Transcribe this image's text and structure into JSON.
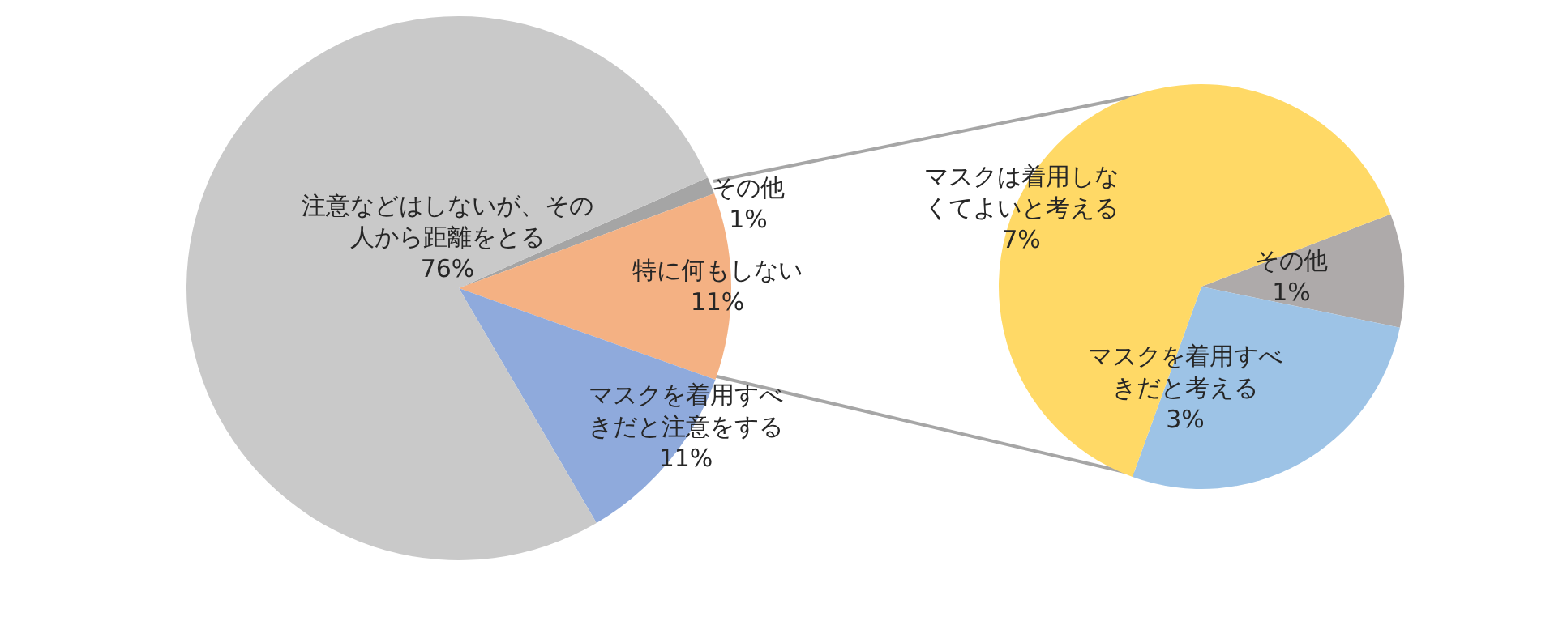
{
  "chart_data": [
    {
      "type": "pie",
      "categories": [
        "その他",
        "特に何もしない",
        "マスクを着用すべきだと注意をする",
        "注意などはしないが、その人から距離をとる"
      ],
      "values": [
        1,
        11,
        11,
        76
      ],
      "value_labels": [
        "1%",
        "11%",
        "11%",
        "76%"
      ],
      "colors": [
        "#a5a5a5",
        "#f4b183",
        "#8faadc",
        "#c9c9c9"
      ]
    },
    {
      "type": "pie",
      "categories": [
        "その他",
        "マスクを着用すべきだと考える",
        "マスクは着用しなくてよいと考える"
      ],
      "values": [
        1,
        3,
        7
      ],
      "value_labels": [
        "1%",
        "3%",
        "7%"
      ],
      "colors": [
        "#aeaaaa",
        "#9dc3e6",
        "#ffd966"
      ]
    }
  ]
}
